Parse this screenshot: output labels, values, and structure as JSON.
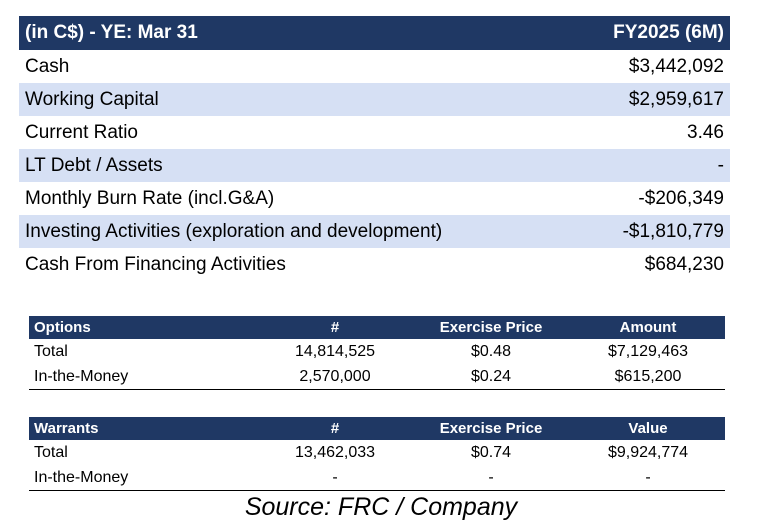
{
  "main_table": {
    "header": {
      "label": "(in C$) - YE: Mar 31",
      "period": "FY2025 (6M)"
    },
    "rows": [
      {
        "label": "Cash",
        "value": "$3,442,092"
      },
      {
        "label": "Working Capital",
        "value": "$2,959,617"
      },
      {
        "label": "Current Ratio",
        "value": "3.46"
      },
      {
        "label": "LT Debt / Assets",
        "value": "-"
      },
      {
        "label": "Monthly Burn Rate (incl.G&A)",
        "value": "-$206,349"
      },
      {
        "label": "Investing Activities (exploration and development)",
        "value": "-$1,810,779"
      },
      {
        "label": "Cash From Financing Activities",
        "value": "$684,230"
      }
    ]
  },
  "options_table": {
    "headers": [
      "Options",
      "#",
      "Exercise Price",
      "Amount"
    ],
    "rows": [
      [
        "Total",
        "14,814,525",
        "$0.48",
        "$7,129,463"
      ],
      [
        "In-the-Money",
        "2,570,000",
        "$0.24",
        "$615,200"
      ]
    ]
  },
  "warrants_table": {
    "headers": [
      "Warrants",
      "#",
      "Exercise Price",
      "Value"
    ],
    "rows": [
      [
        "Total",
        "13,462,033",
        "$0.74",
        "$9,924,774"
      ],
      [
        "In-the-Money",
        "-",
        "-",
        "-"
      ]
    ]
  },
  "source": "Source: FRC / Company"
}
